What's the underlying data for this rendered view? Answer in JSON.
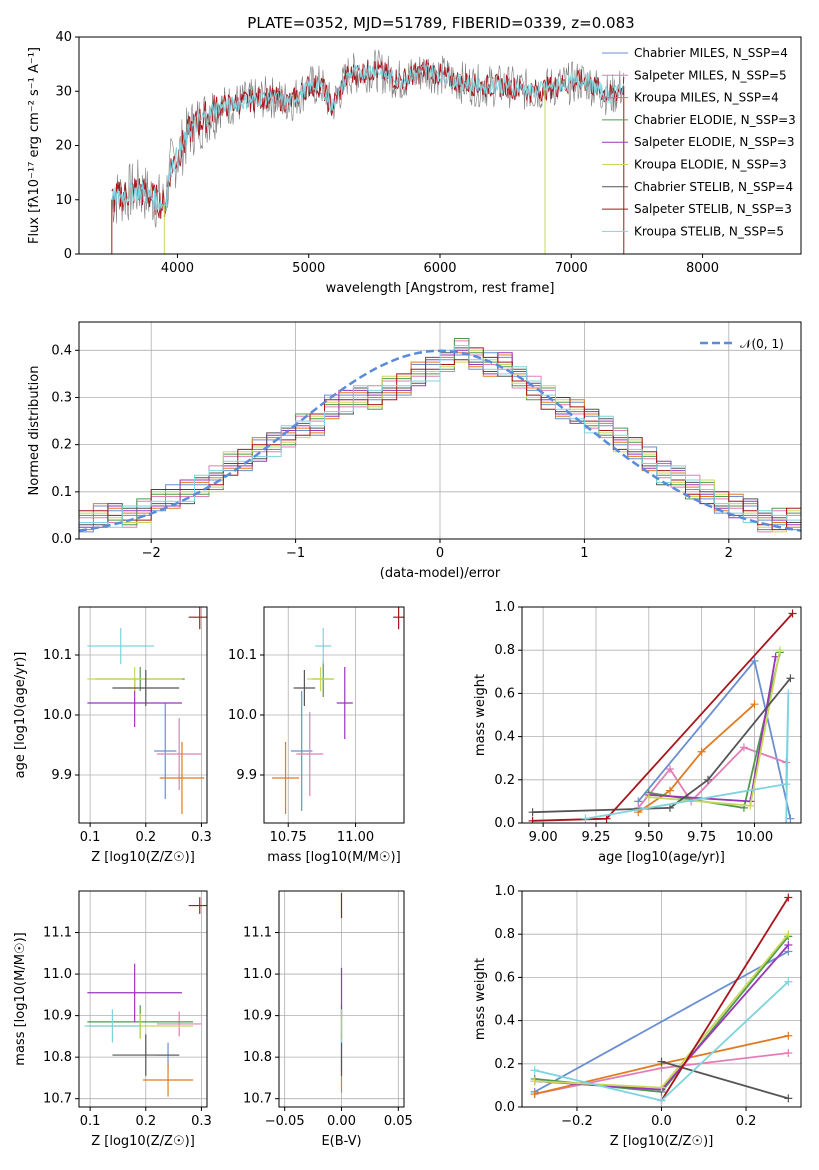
{
  "colors": {
    "Chabrier MILES": "#6a8fd0",
    "Salpeter MILES": "#e07fb7",
    "Kroupa MILES": "#e07b20",
    "Chabrier ELODIE": "#4f9a4f",
    "Salpeter ELODIE": "#9a36b8",
    "Kroupa ELODIE": "#c8d85a",
    "Chabrier STELIB": "#555555",
    "Salpeter STELIB": "#a8151c",
    "Kroupa STELIB": "#7dd4de"
  },
  "chart_data": [
    {
      "type": "line",
      "title": "PLATE=0352, MJD=51789, FIBERID=0339, z=0.083",
      "xlabel": "wavelength [Angstrom, rest frame]",
      "ylabel": "Flux [fλ10⁻¹⁷ erg cm⁻² s⁻¹ A⁻¹]",
      "xlim": [
        3250,
        8750
      ],
      "ylim": [
        0,
        40
      ],
      "xticks": [
        4000,
        5000,
        6000,
        7000,
        8000
      ],
      "yticks": [
        0,
        10,
        20,
        30,
        40
      ],
      "legend_position": "right",
      "legend": [
        "Chabrier MILES, N_SSP=4",
        "Salpeter MILES, N_SSP=5",
        "Kroupa MILES, N_SSP=4",
        "Chabrier ELODIE, N_SSP=3",
        "Salpeter ELODIE, N_SSP=3",
        "Kroupa ELODIE, N_SSP=3",
        "Chabrier STELIB, N_SSP=4",
        "Salpeter STELIB, N_SSP=3",
        "Kroupa STELIB, N_SSP=5"
      ],
      "spectrum": {
        "x": [
          3500,
          3700,
          3900,
          3950,
          4000,
          4100,
          4300,
          4500,
          4700,
          4860,
          5000,
          5100,
          5175,
          5300,
          5500,
          5700,
          5900,
          6100,
          6300,
          6500,
          6700,
          6900,
          7100,
          7300,
          7400
        ],
        "y": [
          10,
          12,
          9,
          16,
          18,
          23,
          27,
          28,
          29,
          28,
          31,
          31,
          27,
          33,
          34,
          32,
          34,
          32,
          31,
          31,
          30,
          31,
          32,
          29,
          31
        ]
      }
    },
    {
      "type": "histogram",
      "xlabel": "(data-model)/error",
      "ylabel": "Normed distribution",
      "xlim": [
        -2.5,
        2.5
      ],
      "ylim": [
        0,
        0.46
      ],
      "xticks": [
        -2,
        -1,
        0,
        1,
        2
      ],
      "yticks": [
        0.0,
        0.1,
        0.2,
        0.3,
        0.4
      ],
      "grid": true,
      "legend": [
        "𝒩(0, 1)"
      ],
      "legend_position": "top-right",
      "bin_centers": [
        -2.45,
        -2.35,
        -2.25,
        -2.15,
        -2.05,
        -1.95,
        -1.85,
        -1.75,
        -1.65,
        -1.55,
        -1.45,
        -1.35,
        -1.25,
        -1.15,
        -1.05,
        -0.95,
        -0.85,
        -0.75,
        -0.65,
        -0.55,
        -0.45,
        -0.35,
        -0.25,
        -0.15,
        -0.05,
        0.05,
        0.15,
        0.25,
        0.35,
        0.45,
        0.55,
        0.65,
        0.75,
        0.85,
        0.95,
        1.05,
        1.15,
        1.25,
        1.35,
        1.45,
        1.55,
        1.65,
        1.75,
        1.85,
        1.95,
        2.05,
        2.15,
        2.25,
        2.35,
        2.45
      ],
      "density": [
        0.04,
        0.05,
        0.05,
        0.05,
        0.06,
        0.08,
        0.09,
        0.1,
        0.11,
        0.13,
        0.16,
        0.17,
        0.19,
        0.2,
        0.22,
        0.24,
        0.24,
        0.28,
        0.29,
        0.3,
        0.3,
        0.32,
        0.33,
        0.35,
        0.36,
        0.38,
        0.4,
        0.38,
        0.37,
        0.37,
        0.34,
        0.32,
        0.3,
        0.28,
        0.27,
        0.25,
        0.24,
        0.21,
        0.19,
        0.17,
        0.14,
        0.13,
        0.11,
        0.1,
        0.08,
        0.07,
        0.06,
        0.04,
        0.04,
        0.04
      ],
      "gaussian": {
        "mu": 0,
        "sigma": 1
      }
    },
    {
      "type": "scatter",
      "xlabel": "Z [log10(Z/Z☉)]",
      "ylabel": "age  [log10(age/yr)]",
      "xlim": [
        0.08,
        0.31
      ],
      "ylim": [
        9.82,
        10.18
      ],
      "xticks": [
        0.1,
        0.2,
        0.3
      ],
      "yticks": [
        9.9,
        10.0,
        10.1
      ],
      "grid": true,
      "points": [
        {
          "model": "Chabrier MILES",
          "x": 0.235,
          "y": 9.94,
          "xerr": 0.02,
          "yerr": 0.08
        },
        {
          "model": "Salpeter MILES",
          "x": 0.26,
          "y": 9.935,
          "xerr": 0.04,
          "yerr": 0.06
        },
        {
          "model": "Kroupa MILES",
          "x": 0.265,
          "y": 9.895,
          "xerr": 0.04,
          "yerr": 0.06
        },
        {
          "model": "Chabrier ELODIE",
          "x": 0.19,
          "y": 10.06,
          "xerr": 0.08,
          "yerr": 0.02
        },
        {
          "model": "Salpeter ELODIE",
          "x": 0.18,
          "y": 10.02,
          "xerr": 0.085,
          "yerr": 0.04
        },
        {
          "model": "Kroupa ELODIE",
          "x": 0.18,
          "y": 10.06,
          "xerr": 0.085,
          "yerr": 0.02
        },
        {
          "model": "Chabrier STELIB",
          "x": 0.2,
          "y": 10.045,
          "xerr": 0.06,
          "yerr": 0.03
        },
        {
          "model": "Salpeter STELIB",
          "x": 0.297,
          "y": 10.163,
          "xerr": 0.02,
          "yerr": 0.02
        },
        {
          "model": "Kroupa STELIB",
          "x": 0.155,
          "y": 10.115,
          "xerr": 0.06,
          "yerr": 0.03
        }
      ]
    },
    {
      "type": "scatter",
      "xlabel": "mass [log10(M/M☉)]",
      "ylabel": "",
      "xlim": [
        10.66,
        11.18
      ],
      "ylim": [
        9.82,
        10.18
      ],
      "xticks": [
        10.75,
        11.0
      ],
      "xticklabels": [
        "10.75",
        "11.00"
      ],
      "yticks": [
        9.9,
        10.0,
        10.1
      ],
      "grid": true,
      "points": [
        {
          "model": "Chabrier MILES",
          "x": 10.8,
          "y": 9.94,
          "xerr": 0.04,
          "yerr": 0.1
        },
        {
          "model": "Salpeter MILES",
          "x": 10.83,
          "y": 9.935,
          "xerr": 0.05,
          "yerr": 0.07
        },
        {
          "model": "Kroupa MILES",
          "x": 10.74,
          "y": 9.895,
          "xerr": 0.05,
          "yerr": 0.06
        },
        {
          "model": "Chabrier ELODIE",
          "x": 10.88,
          "y": 10.06,
          "xerr": 0.04,
          "yerr": 0.03
        },
        {
          "model": "Salpeter ELODIE",
          "x": 10.96,
          "y": 10.02,
          "xerr": 0.03,
          "yerr": 0.06
        },
        {
          "model": "Kroupa ELODIE",
          "x": 10.87,
          "y": 10.06,
          "xerr": 0.05,
          "yerr": 0.02
        },
        {
          "model": "Chabrier STELIB",
          "x": 10.81,
          "y": 10.045,
          "xerr": 0.04,
          "yerr": 0.03
        },
        {
          "model": "Salpeter STELIB",
          "x": 11.16,
          "y": 10.163,
          "xerr": 0.02,
          "yerr": 0.02
        },
        {
          "model": "Kroupa STELIB",
          "x": 10.88,
          "y": 10.115,
          "xerr": 0.03,
          "yerr": 0.03
        }
      ]
    },
    {
      "type": "line",
      "xlabel": "age  [log10(age/yr)]",
      "ylabel": "mass weight",
      "xlim": [
        8.9,
        10.22
      ],
      "ylim": [
        0,
        1
      ],
      "xticks": [
        9.0,
        9.25,
        9.5,
        9.75,
        10.0
      ],
      "xticklabels": [
        "9.00",
        "9.25",
        "9.50",
        "9.75",
        "10.00"
      ],
      "yticks": [
        0.0,
        0.2,
        0.4,
        0.6,
        0.8,
        1.0
      ],
      "grid": true,
      "series": [
        {
          "name": "Chabrier MILES",
          "x": [
            9.45,
            10.0,
            10.17
          ],
          "y": [
            0.1,
            0.75,
            0.02
          ]
        },
        {
          "name": "Salpeter MILES",
          "x": [
            9.45,
            9.6,
            9.7,
            9.95,
            10.15
          ],
          "y": [
            0.07,
            0.25,
            0.1,
            0.35,
            0.28
          ]
        },
        {
          "name": "Kroupa MILES",
          "x": [
            9.45,
            9.6,
            9.75,
            10.0
          ],
          "y": [
            0.05,
            0.15,
            0.33,
            0.55
          ]
        },
        {
          "name": "Chabrier ELODIE",
          "x": [
            9.5,
            9.95,
            10.12
          ],
          "y": [
            0.14,
            0.07,
            0.79
          ]
        },
        {
          "name": "Salpeter ELODIE",
          "x": [
            9.5,
            9.98,
            10.1
          ],
          "y": [
            0.13,
            0.1,
            0.77
          ]
        },
        {
          "name": "Kroupa ELODIE",
          "x": [
            9.5,
            9.98,
            10.12
          ],
          "y": [
            0.12,
            0.08,
            0.8
          ]
        },
        {
          "name": "Chabrier STELIB",
          "x": [
            8.95,
            9.6,
            9.78,
            10.17
          ],
          "y": [
            0.05,
            0.07,
            0.2,
            0.67
          ]
        },
        {
          "name": "Salpeter STELIB",
          "x": [
            8.95,
            9.3,
            10.18
          ],
          "y": [
            0.01,
            0.02,
            0.97
          ]
        },
        {
          "name": "Kroupa STELIB",
          "x": [
            9.2,
            10.15,
            10.16,
            10.15
          ],
          "y": [
            0.02,
            0.18,
            0.6,
            0.0
          ]
        }
      ]
    },
    {
      "type": "scatter",
      "xlabel": "Z [log10(Z/Z☉)]",
      "ylabel": "mass [log10(M/M☉)]",
      "xlim": [
        0.08,
        0.31
      ],
      "ylim": [
        10.68,
        11.2
      ],
      "xticks": [
        0.1,
        0.2,
        0.3
      ],
      "yticks": [
        10.7,
        10.8,
        10.9,
        11.0,
        11.1
      ],
      "grid": true,
      "points": [
        {
          "model": "Chabrier MILES",
          "x": 0.24,
          "y": 10.805,
          "xerr": 0.02,
          "yerr": 0.03
        },
        {
          "model": "Salpeter MILES",
          "x": 0.26,
          "y": 10.88,
          "xerr": 0.04,
          "yerr": 0.03
        },
        {
          "model": "Kroupa MILES",
          "x": 0.24,
          "y": 10.745,
          "xerr": 0.045,
          "yerr": 0.04
        },
        {
          "model": "Chabrier ELODIE",
          "x": 0.19,
          "y": 10.885,
          "xerr": 0.095,
          "yerr": 0.04
        },
        {
          "model": "Salpeter ELODIE",
          "x": 0.18,
          "y": 10.955,
          "xerr": 0.085,
          "yerr": 0.07
        },
        {
          "model": "Kroupa ELODIE",
          "x": 0.19,
          "y": 10.875,
          "xerr": 0.095,
          "yerr": 0.03
        },
        {
          "model": "Chabrier STELIB",
          "x": 0.2,
          "y": 10.805,
          "xerr": 0.06,
          "yerr": 0.05
        },
        {
          "model": "Salpeter STELIB",
          "x": 0.297,
          "y": 11.165,
          "xerr": 0.02,
          "yerr": 0.02
        },
        {
          "model": "Kroupa STELIB",
          "x": 0.14,
          "y": 10.875,
          "xerr": 0.05,
          "yerr": 0.04
        }
      ]
    },
    {
      "type": "scatter",
      "xlabel": "E(B-V)",
      "ylabel": "",
      "xlim": [
        -0.055,
        0.055
      ],
      "ylim": [
        10.68,
        11.2
      ],
      "xticks": [
        -0.05,
        0.0,
        0.05
      ],
      "xticklabels": [
        "−0.05",
        "0.00",
        "0.05"
      ],
      "yticks": [
        10.7,
        10.8,
        10.9,
        11.0,
        11.1
      ],
      "grid": true,
      "points": [
        {
          "model": "Chabrier MILES",
          "x": 0.0,
          "y": 10.805,
          "xerr": 0,
          "yerr": 0.03
        },
        {
          "model": "Salpeter MILES",
          "x": 0.0,
          "y": 10.88,
          "xerr": 0,
          "yerr": 0.03
        },
        {
          "model": "Kroupa MILES",
          "x": 0.0,
          "y": 10.745,
          "xerr": 0,
          "yerr": 0.03
        },
        {
          "model": "Chabrier ELODIE",
          "x": 0.0,
          "y": 10.885,
          "xerr": 0,
          "yerr": 0.04
        },
        {
          "model": "Salpeter ELODIE",
          "x": 0.0,
          "y": 10.955,
          "xerr": 0,
          "yerr": 0.06
        },
        {
          "model": "Kroupa ELODIE",
          "x": 0.0,
          "y": 10.875,
          "xerr": 0,
          "yerr": 0.03
        },
        {
          "model": "Chabrier STELIB",
          "x": 0.0,
          "y": 10.805,
          "xerr": 0,
          "yerr": 0.05
        },
        {
          "model": "Salpeter STELIB",
          "x": 0.0,
          "y": 11.165,
          "xerr": 0,
          "yerr": 0.03
        },
        {
          "model": "Kroupa STELIB",
          "x": 0.0,
          "y": 10.875,
          "xerr": 0,
          "yerr": 0.04
        }
      ]
    },
    {
      "type": "line",
      "xlabel": "Z [log10(Z/Z☉)]",
      "ylabel": "mass weight",
      "xlim": [
        -0.33,
        0.33
      ],
      "ylim": [
        0,
        1
      ],
      "xticks": [
        -0.2,
        0.0,
        0.2
      ],
      "xticklabels": [
        "−0.2",
        "0.0",
        "0.2"
      ],
      "yticks": [
        0.0,
        0.2,
        0.4,
        0.6,
        0.8,
        1.0
      ],
      "grid": true,
      "series": [
        {
          "name": "Chabrier MILES",
          "x": [
            -0.3,
            0.3
          ],
          "y": [
            0.07,
            0.72
          ]
        },
        {
          "name": "Salpeter MILES",
          "x": [
            -0.3,
            0.0,
            0.3
          ],
          "y": [
            0.06,
            0.18,
            0.25
          ]
        },
        {
          "name": "Kroupa MILES",
          "x": [
            -0.3,
            0.0,
            0.3
          ],
          "y": [
            0.06,
            0.2,
            0.33
          ]
        },
        {
          "name": "Chabrier ELODIE",
          "x": [
            -0.3,
            0.0,
            0.3
          ],
          "y": [
            0.13,
            0.07,
            0.79
          ]
        },
        {
          "name": "Salpeter ELODIE",
          "x": [
            -0.3,
            0.0,
            0.3
          ],
          "y": [
            0.12,
            0.08,
            0.75
          ]
        },
        {
          "name": "Kroupa ELODIE",
          "x": [
            -0.3,
            0.0,
            0.3
          ],
          "y": [
            0.12,
            0.09,
            0.8
          ]
        },
        {
          "name": "Chabrier STELIB",
          "x": [
            0.0,
            0.3
          ],
          "y": [
            0.21,
            0.04
          ]
        },
        {
          "name": "Salpeter STELIB",
          "x": [
            0.0,
            0.3
          ],
          "y": [
            0.03,
            0.97
          ]
        },
        {
          "name": "Kroupa STELIB",
          "x": [
            -0.3,
            0.0,
            0.3
          ],
          "y": [
            0.17,
            0.03,
            0.58
          ]
        }
      ]
    }
  ]
}
